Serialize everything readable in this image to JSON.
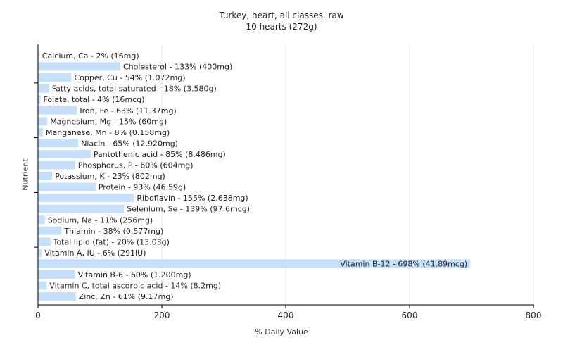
{
  "chart_data": {
    "type": "bar",
    "orientation": "horizontal",
    "title": "Turkey, heart, all classes, raw",
    "subtitle": "10 hearts (272g)",
    "xlabel": "% Daily Value",
    "ylabel": "Nutrient",
    "xlim": [
      0,
      800
    ],
    "xticks": [
      0,
      200,
      400,
      600,
      800
    ],
    "grid": true,
    "bar_color": "#c6dffa",
    "categories": [
      "Calcium, Ca",
      "Cholesterol",
      "Copper, Cu",
      "Fatty acids, total saturated",
      "Folate, total",
      "Iron, Fe",
      "Magnesium, Mg",
      "Manganese, Mn",
      "Niacin",
      "Pantothenic acid",
      "Phosphorus, P",
      "Potassium, K",
      "Protein",
      "Riboflavin",
      "Selenium, Se",
      "Sodium, Na",
      "Thiamin",
      "Total lipid (fat)",
      "Vitamin A, IU",
      "Vitamin B-12",
      "Vitamin B-6",
      "Vitamin C, total ascorbic acid",
      "Zinc, Zn"
    ],
    "values": [
      2,
      133,
      54,
      18,
      4,
      63,
      15,
      8,
      65,
      85,
      60,
      23,
      93,
      155,
      139,
      11,
      38,
      20,
      6,
      698,
      60,
      14,
      61
    ],
    "labels": [
      "Calcium, Ca - 2% (16mg)",
      "Cholesterol - 133% (400mg)",
      "Copper, Cu - 54% (1.072mg)",
      "Fatty acids, total saturated - 18% (3.580g)",
      "Folate, total - 4% (16mcg)",
      "Iron, Fe - 63% (11.37mg)",
      "Magnesium, Mg - 15% (60mg)",
      "Manganese, Mn - 8% (0.158mg)",
      "Niacin - 65% (12.920mg)",
      "Pantothenic acid - 85% (8.486mg)",
      "Phosphorus, P - 60% (604mg)",
      "Potassium, K - 23% (802mg)",
      "Protein - 93% (46.59g)",
      "Riboflavin - 155% (2.638mg)",
      "Selenium, Se - 139% (97.6mcg)",
      "Sodium, Na - 11% (256mg)",
      "Thiamin - 38% (0.577mg)",
      "Total lipid (fat) - 20% (13.03g)",
      "Vitamin A, IU - 6% (291IU)",
      "Vitamin B-12 - 698% (41.89mcg)",
      "Vitamin B-6 - 60% (1.200mg)",
      "Vitamin C, total ascorbic acid - 14% (8.2mg)",
      "Zinc, Zn - 61% (9.17mg)"
    ]
  }
}
